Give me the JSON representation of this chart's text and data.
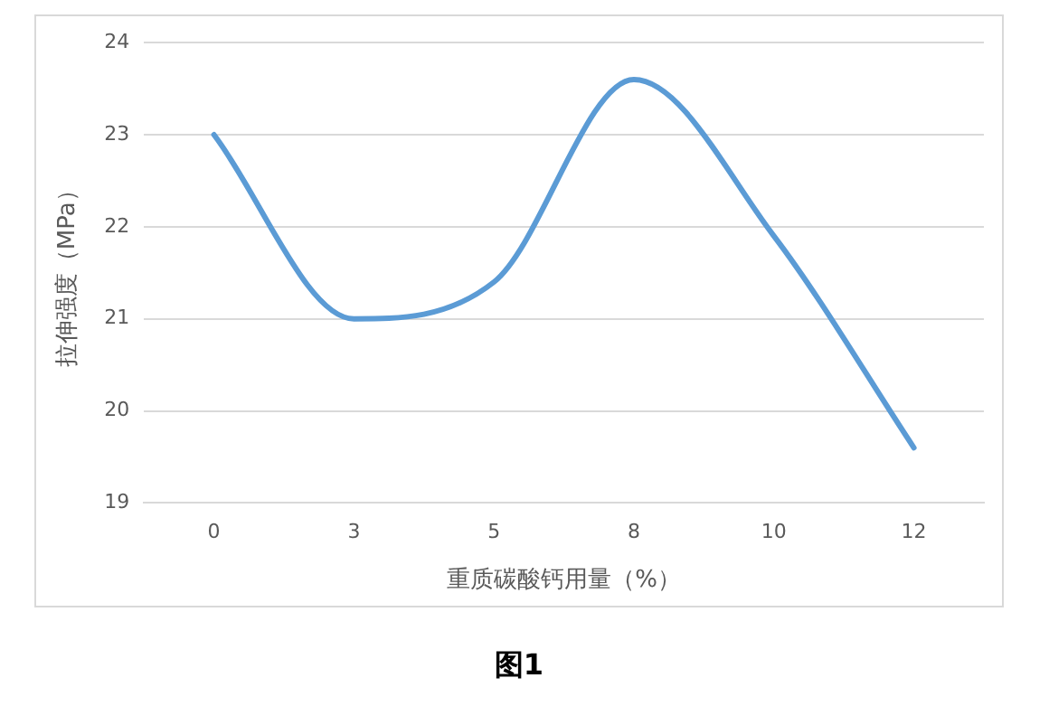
{
  "chart_data": {
    "type": "line",
    "title": "图1",
    "xlabel": "重质碳酸钙用量（%）",
    "ylabel": "拉伸强度（MPa）",
    "categories": [
      "0",
      "3",
      "5",
      "8",
      "10",
      "12"
    ],
    "series": [
      {
        "color": "#5b9bd5",
        "values": [
          23,
          21.0,
          21.4,
          23.6,
          21.9,
          19.6
        ]
      }
    ],
    "ylim": [
      19,
      24
    ],
    "yticks": [
      19,
      20,
      21,
      22,
      23,
      24
    ],
    "grid": "y",
    "legend": false,
    "marker": "none",
    "line_style": "solid"
  }
}
